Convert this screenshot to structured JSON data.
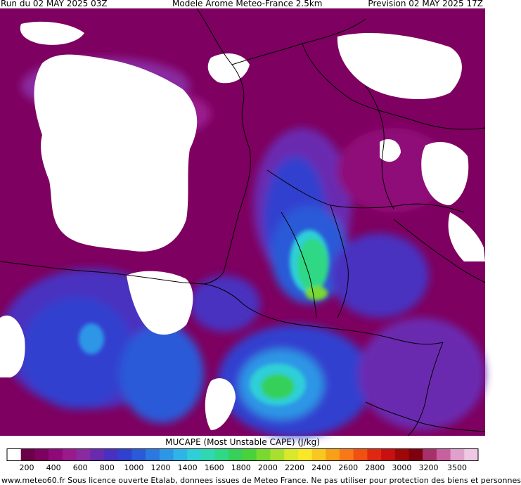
{
  "header": {
    "run": "Run du 02 MAY 2025 03Z",
    "model": "Modele Arome Meteo-France 2.5km",
    "forecast": "Prevision 02 MAY 2025 17Z"
  },
  "legend": {
    "title": "MUCAPE (Most Unstable CAPE) (J/kg)",
    "ticks": [
      "200",
      "400",
      "600",
      "800",
      "1000",
      "1200",
      "1400",
      "1600",
      "1800",
      "2000",
      "2200",
      "2400",
      "2600",
      "2800",
      "3000",
      "3200",
      "3500"
    ],
    "colors": [
      "#ffffff",
      "#6b0048",
      "#7e0060",
      "#8f0a78",
      "#9a1a8e",
      "#8a2aa0",
      "#6a2ab0",
      "#4a30c0",
      "#3040cf",
      "#2a5ad8",
      "#2a78e0",
      "#2e96e6",
      "#2fb4e8",
      "#2fcfd8",
      "#2fd8b0",
      "#2fd884",
      "#36d05a",
      "#4ad23a",
      "#78da30",
      "#a8e030",
      "#d8e82a",
      "#f8e828",
      "#f8c820",
      "#f8a018",
      "#f87818",
      "#f05010",
      "#e02810",
      "#c81010",
      "#a00808",
      "#800010",
      "#a8306a",
      "#c860a0",
      "#e0a0cc",
      "#f0c8e4"
    ]
  },
  "footer": "www.meteo60.fr  Sous licence ouverte Etalab, donnees issues de Meteo France. Ne pas utiliser pour protection des biens et personnes"
}
